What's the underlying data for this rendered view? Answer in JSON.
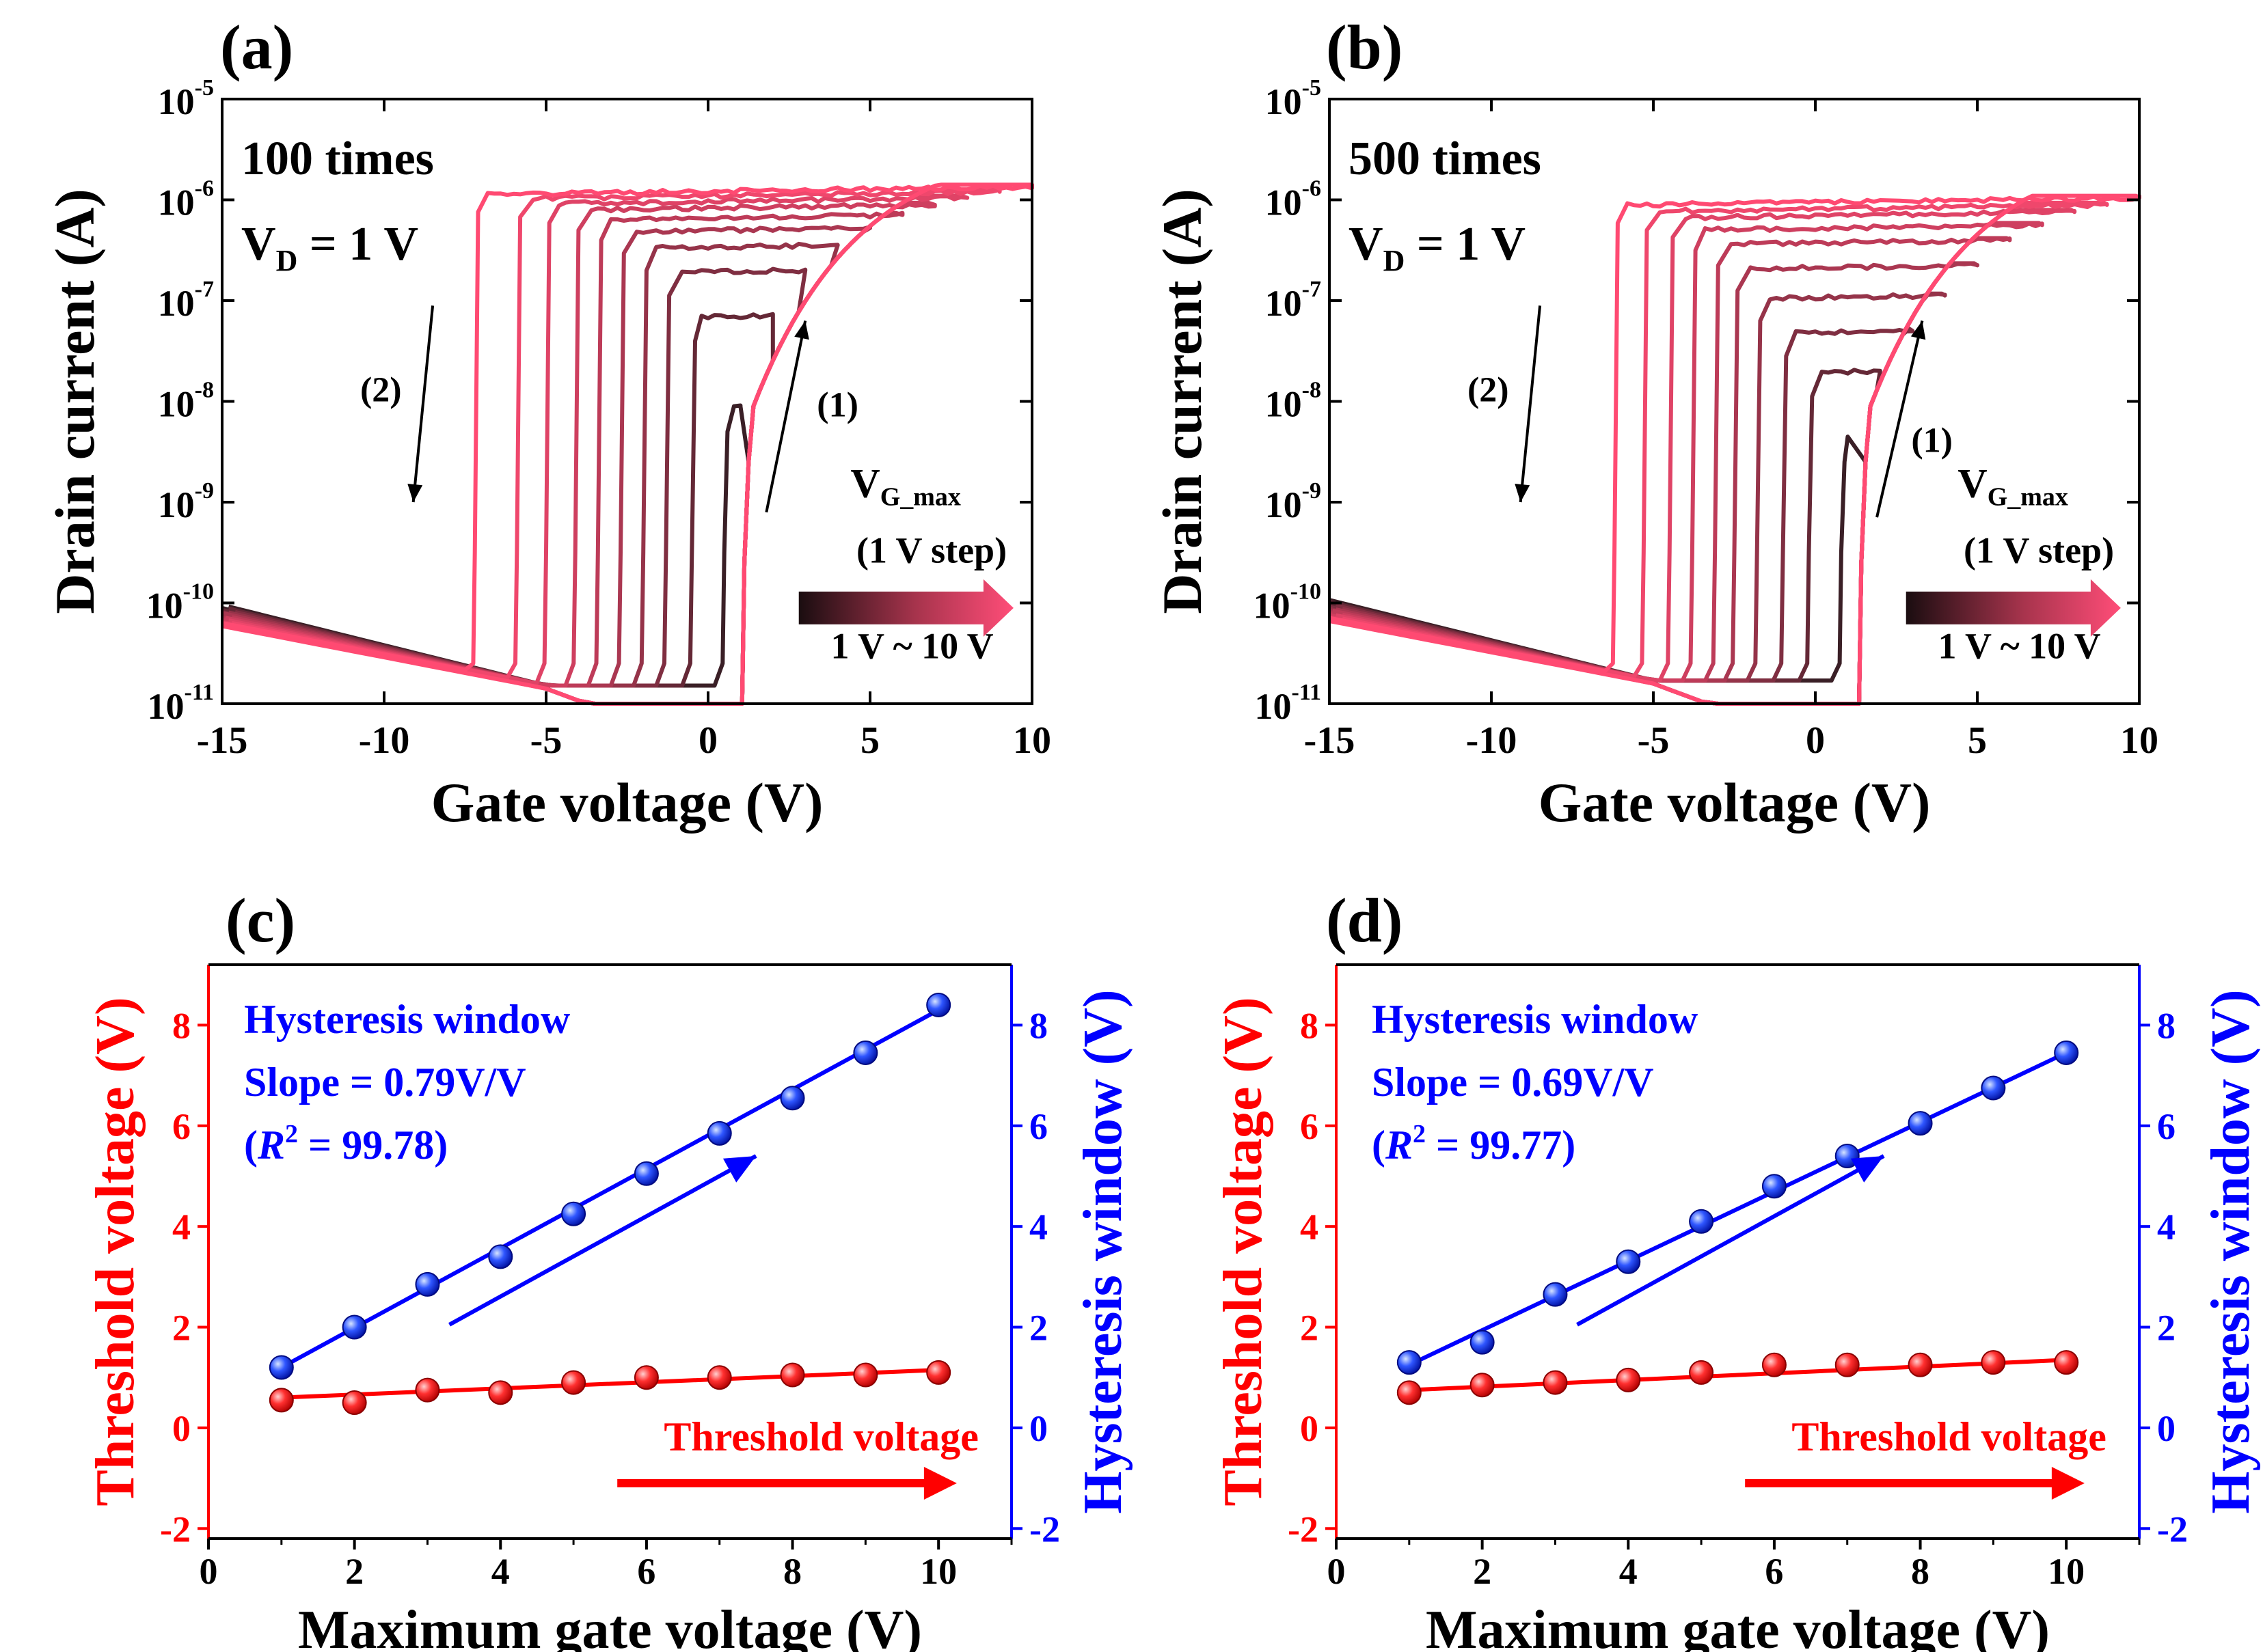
{
  "chart_data": [
    {
      "panel": "(a)",
      "type": "line",
      "ylabel": "Drain current (A)",
      "xlabel": "Gate voltage (V)",
      "xlim": [
        -15,
        10
      ],
      "ylim_log10": [
        -11,
        -5
      ],
      "y_scale": "log",
      "x_ticks": [
        "-15",
        "-10",
        "-5",
        "0",
        "5",
        "10"
      ],
      "y_ticks": [
        {
          "base": "10",
          "exp": "-11"
        },
        {
          "base": "10",
          "exp": "-10"
        },
        {
          "base": "10",
          "exp": "-9"
        },
        {
          "base": "10",
          "exp": "-8"
        },
        {
          "base": "10",
          "exp": "-7"
        },
        {
          "base": "10",
          "exp": "-6"
        },
        {
          "base": "10",
          "exp": "-5"
        }
      ],
      "annotations": {
        "count": "100 times",
        "vd_main": "V",
        "vd_sub": "D",
        "vd_rest": " = 1 V",
        "sweep1": "(1)",
        "sweep2": "(2)",
        "vg_main": "V",
        "vg_sub": "G_max",
        "step": "(1 V step)",
        "range": "1 V ~ 10 V"
      },
      "forward_turn_on_v": 1.0,
      "vg_max": [
        1,
        2,
        3,
        4,
        5,
        6,
        7,
        8,
        9,
        10
      ],
      "reverse_turn_off_v": [
        0.5,
        -0.5,
        -1.3,
        -2.0,
        -2.7,
        -3.4,
        -4.1,
        -5.0,
        -5.9,
        -7.2
      ],
      "peak_log10_current": [
        -8.05,
        -7.15,
        -6.7,
        -6.45,
        -6.28,
        -6.15,
        -6.05,
        -5.98,
        -5.92,
        -5.87
      ],
      "end_log10_current": -5.88,
      "off_current_log10": {
        "at_minus15": -10.05,
        "at_minus5": -10.85
      }
    },
    {
      "panel": "(b)",
      "type": "line",
      "ylabel": "Drain current (A)",
      "xlabel": "Gate voltage (V)",
      "xlim": [
        -15,
        10
      ],
      "ylim_log10": [
        -11,
        -5
      ],
      "y_scale": "log",
      "x_ticks": [
        "-15",
        "-10",
        "-5",
        "0",
        "5",
        "10"
      ],
      "y_ticks": [
        {
          "base": "10",
          "exp": "-11"
        },
        {
          "base": "10",
          "exp": "-10"
        },
        {
          "base": "10",
          "exp": "-9"
        },
        {
          "base": "10",
          "exp": "-8"
        },
        {
          "base": "10",
          "exp": "-7"
        },
        {
          "base": "10",
          "exp": "-6"
        },
        {
          "base": "10",
          "exp": "-5"
        }
      ],
      "annotations": {
        "count": "500 times",
        "vd_main": "V",
        "vd_sub": "D",
        "vd_rest": " = 1 V",
        "sweep1": "(1)",
        "sweep2": "(2)",
        "vg_main": "V",
        "vg_sub": "G_max",
        "step": "(1 V step)",
        "range": "1 V ~ 10 V"
      },
      "forward_turn_on_v": 1.3,
      "vg_max": [
        1,
        2,
        3,
        4,
        5,
        6,
        7,
        8,
        9,
        10
      ],
      "reverse_turn_off_v": [
        0.8,
        -0.2,
        -1.0,
        -1.8,
        -2.5,
        -3.1,
        -3.8,
        -4.5,
        -5.3,
        -6.2
      ],
      "peak_log10_current": [
        -8.35,
        -7.7,
        -7.3,
        -6.95,
        -6.65,
        -6.4,
        -6.25,
        -6.12,
        -6.05,
        -5.98
      ],
      "end_log10_current": -5.98,
      "off_current_log10": {
        "at_minus15": -10.0,
        "at_minus5": -10.8
      }
    },
    {
      "panel": "(c)",
      "type": "scatter",
      "xlabel": "Maximum gate voltage (V)",
      "ylabel_left": "Threshold voltage (V)",
      "ylabel_right": "Hysteresis window (V)",
      "xlim": [
        0,
        11
      ],
      "ylim": [
        -2.2,
        9.2
      ],
      "x_ticks": [
        "0",
        "2",
        "4",
        "6",
        "8",
        "10"
      ],
      "y_ticks": [
        "-2",
        "0",
        "2",
        "4",
        "6",
        "8"
      ],
      "x": [
        1,
        2,
        3,
        4,
        5,
        6,
        7,
        8,
        9,
        10
      ],
      "series": [
        {
          "name": "Threshold voltage",
          "color": "#ff0000",
          "values": [
            0.55,
            0.5,
            0.75,
            0.7,
            0.9,
            1.0,
            1.0,
            1.05,
            1.05,
            1.1
          ],
          "fit": [
            0.6,
            1.15
          ]
        },
        {
          "name": "Hysteresis window",
          "color": "#0000ff",
          "values": [
            1.2,
            2.0,
            2.85,
            3.4,
            4.25,
            5.05,
            5.85,
            6.55,
            7.45,
            8.4
          ],
          "fit": [
            1.2,
            8.3
          ]
        }
      ],
      "annotations": {
        "hw_title": "Hysteresis window",
        "slope": "Slope = 0.79V/V",
        "r2_open": "(",
        "r2_r": "R",
        "r2_sup": "2",
        "r2_value": " = 99.78)",
        "vth_label": "Threshold voltage"
      }
    },
    {
      "panel": "(d)",
      "type": "scatter",
      "xlabel": "Maximum gate voltage (V)",
      "ylabel_left": "Threshold voltage (V)",
      "ylabel_right": "Hysteresis window (V)",
      "xlim": [
        0,
        11
      ],
      "ylim": [
        -2.2,
        9.2
      ],
      "x_ticks": [
        "0",
        "2",
        "4",
        "6",
        "8",
        "10"
      ],
      "y_ticks": [
        "-2",
        "0",
        "2",
        "4",
        "6",
        "8"
      ],
      "x": [
        1,
        2,
        3,
        4,
        5,
        6,
        7,
        8,
        9,
        10
      ],
      "series": [
        {
          "name": "Threshold voltage",
          "color": "#ff0000",
          "values": [
            0.7,
            0.85,
            0.9,
            0.95,
            1.1,
            1.25,
            1.25,
            1.25,
            1.3,
            1.3
          ],
          "fit": [
            0.75,
            1.35
          ]
        },
        {
          "name": "Hysteresis window",
          "color": "#0000ff",
          "values": [
            1.3,
            1.7,
            2.65,
            3.3,
            4.1,
            4.8,
            5.4,
            6.05,
            6.75,
            7.45
          ],
          "fit": [
            1.25,
            7.45
          ]
        }
      ],
      "annotations": {
        "hw_title": "Hysteresis window",
        "slope": "Slope = 0.69V/V",
        "r2_open": "(",
        "r2_r": "R",
        "r2_sup": "2",
        "r2_value": " = 99.77)",
        "vth_label": "Threshold voltage"
      }
    }
  ]
}
